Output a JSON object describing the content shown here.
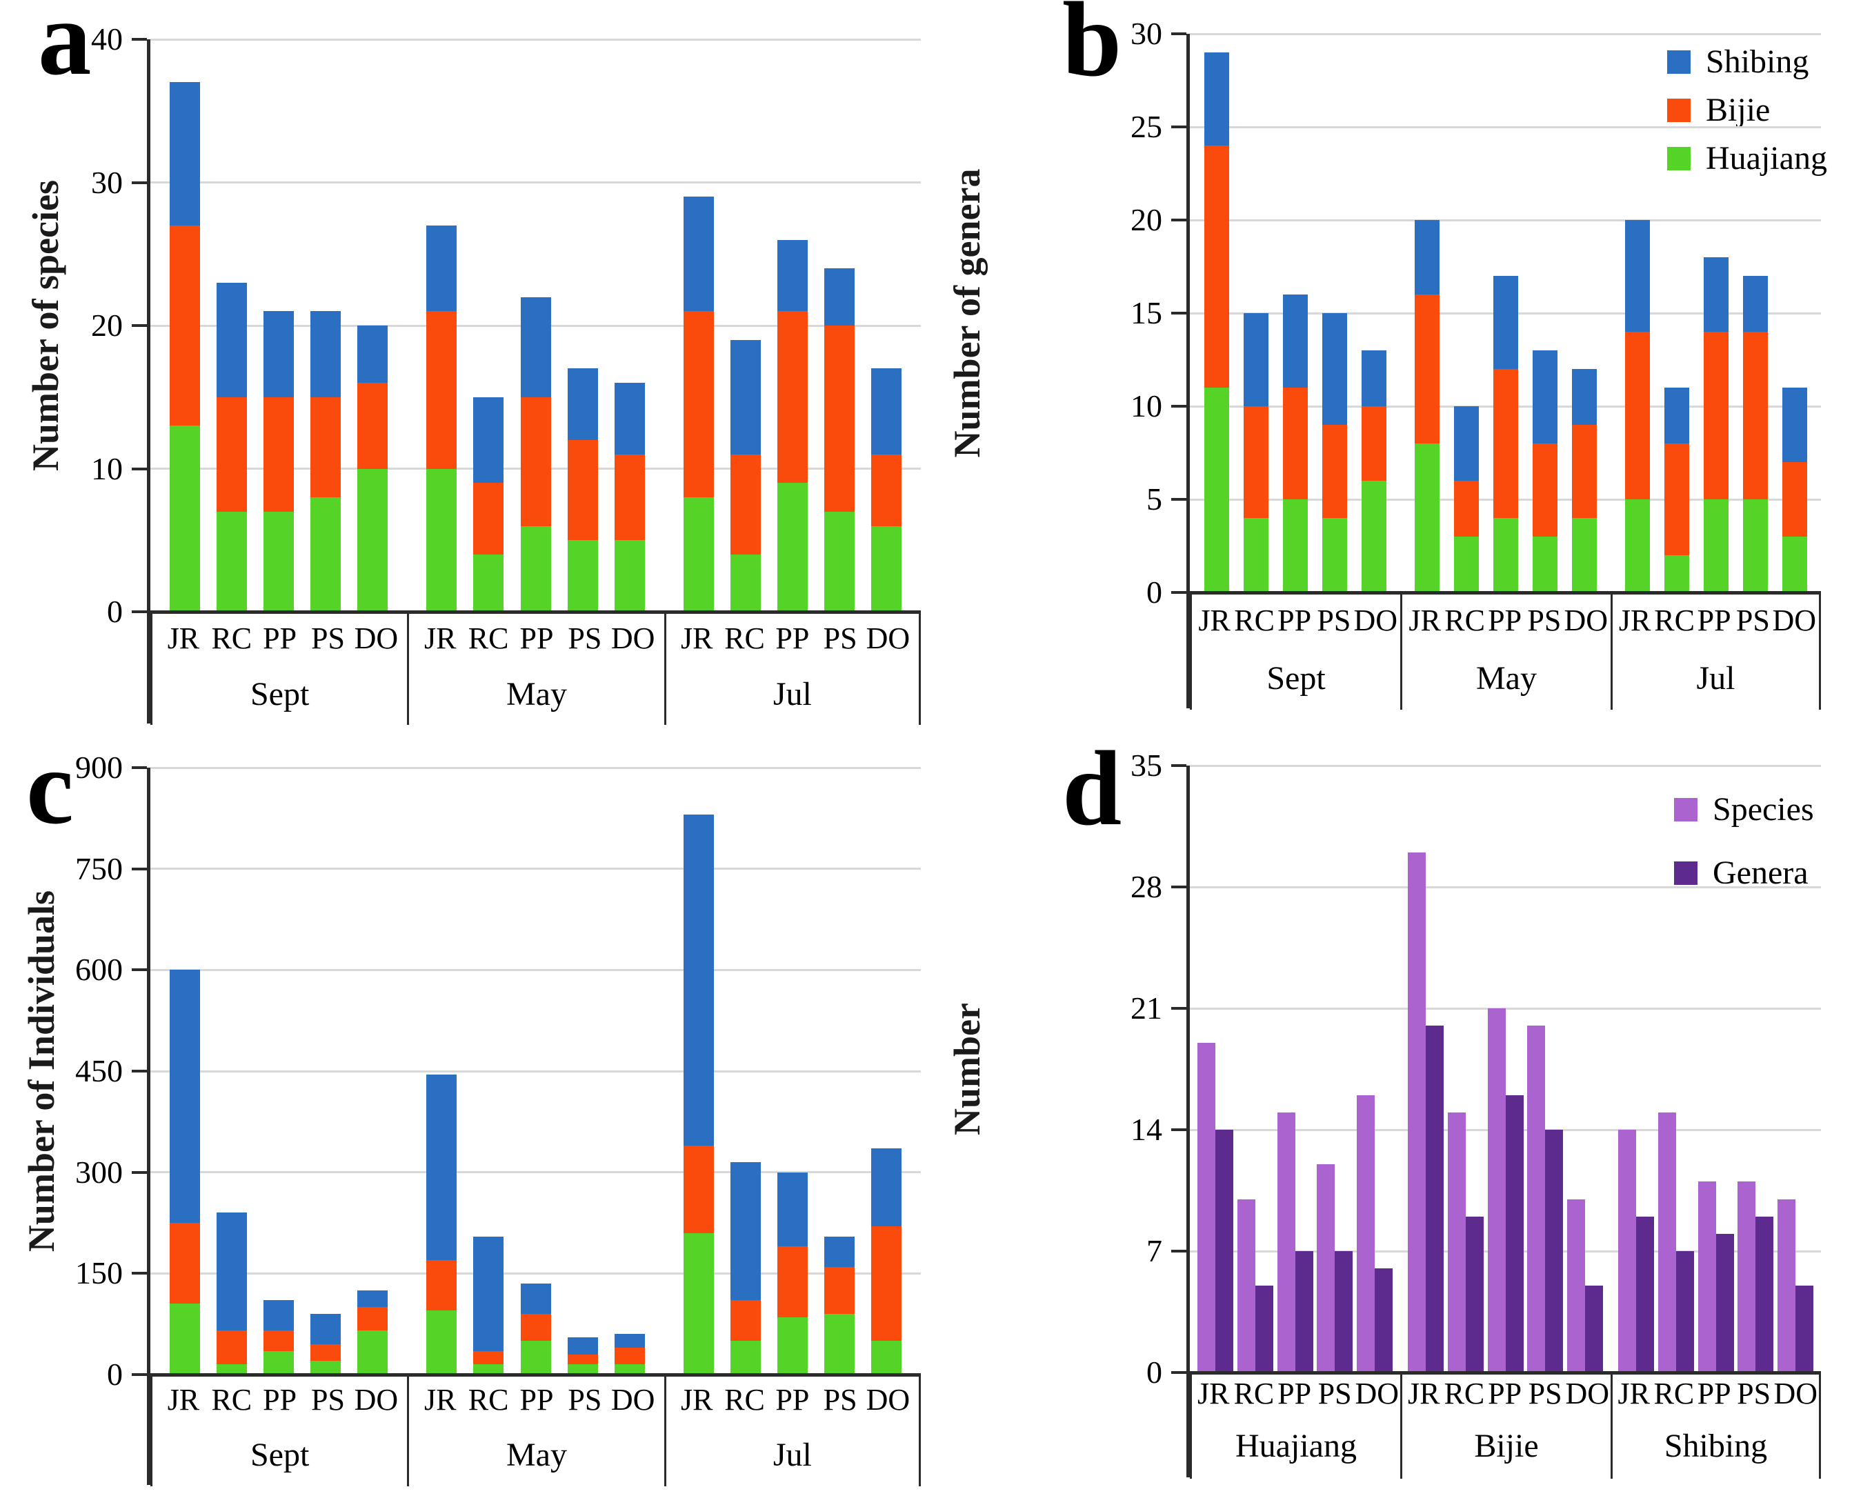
{
  "colors": {
    "shibing": "#2b6fc2",
    "bijie": "#fa4a0c",
    "huajiang": "#55d327",
    "species": "#aa63cf",
    "genera": "#5d2b8d",
    "gridline": "#d8d8d8",
    "axis": "#2b2b2b"
  },
  "chart_data": [
    {
      "id": "a",
      "letter": "a",
      "type": "bar-stacked",
      "y_title": "Number of species",
      "ylim": [
        0,
        40
      ],
      "yticks": [
        0,
        10,
        20,
        30,
        40
      ],
      "groups": [
        "Sept",
        "May",
        "Jul"
      ],
      "site_labels": [
        "JR",
        "RC",
        "PP",
        "PS",
        "DO"
      ],
      "grid": true,
      "legend_position": "none",
      "series": [
        {
          "name": "Huajiang",
          "color": "huajiang",
          "values": [
            [
              13,
              7,
              7,
              8,
              10
            ],
            [
              10,
              4,
              6,
              5,
              5
            ],
            [
              8,
              4,
              9,
              7,
              6
            ]
          ]
        },
        {
          "name": "Bijie",
          "color": "bijie",
          "values": [
            [
              14,
              8,
              8,
              7,
              6
            ],
            [
              11,
              5,
              9,
              7,
              6
            ],
            [
              13,
              7,
              12,
              13,
              5
            ]
          ]
        },
        {
          "name": "Shibing",
          "color": "shibing",
          "values": [
            [
              10,
              8,
              6,
              6,
              4
            ],
            [
              6,
              6,
              7,
              5,
              5
            ],
            [
              8,
              8,
              5,
              4,
              6
            ]
          ]
        }
      ]
    },
    {
      "id": "b",
      "letter": "b",
      "type": "bar-stacked",
      "y_title": "Number of genera",
      "ylim": [
        0,
        30
      ],
      "yticks": [
        0,
        5,
        10,
        15,
        20,
        25,
        30
      ],
      "groups": [
        "Sept",
        "May",
        "Jul"
      ],
      "site_labels": [
        "JR",
        "RC",
        "PP",
        "PS",
        "DO"
      ],
      "grid": true,
      "legend_position": "top-right",
      "legend": [
        {
          "label": "Shibing",
          "color": "shibing"
        },
        {
          "label": "Bijie",
          "color": "bijie"
        },
        {
          "label": "Huajiang",
          "color": "huajiang"
        }
      ],
      "series": [
        {
          "name": "Huajiang",
          "color": "huajiang",
          "values": [
            [
              11,
              4,
              5,
              4,
              6
            ],
            [
              8,
              3,
              4,
              3,
              4
            ],
            [
              5,
              2,
              5,
              5,
              3
            ]
          ]
        },
        {
          "name": "Bijie",
          "color": "bijie",
          "values": [
            [
              13,
              6,
              6,
              5,
              4
            ],
            [
              8,
              3,
              8,
              5,
              5
            ],
            [
              9,
              6,
              9,
              9,
              4
            ]
          ]
        },
        {
          "name": "Shibing",
          "color": "shibing",
          "values": [
            [
              5,
              5,
              5,
              6,
              3
            ],
            [
              4,
              4,
              5,
              5,
              3
            ],
            [
              6,
              3,
              4,
              3,
              4
            ]
          ]
        }
      ]
    },
    {
      "id": "c",
      "letter": "c",
      "type": "bar-stacked",
      "y_title": "Number of Individuals",
      "ylim": [
        0,
        900
      ],
      "yticks": [
        0,
        150,
        300,
        450,
        600,
        750,
        900
      ],
      "groups": [
        "Sept",
        "May",
        "Jul"
      ],
      "site_labels": [
        "JR",
        "RC",
        "PP",
        "PS",
        "DO"
      ],
      "grid": true,
      "legend_position": "none",
      "series": [
        {
          "name": "Huajiang",
          "color": "huajiang",
          "values": [
            [
              105,
              15,
              35,
              20,
              65
            ],
            [
              95,
              15,
              50,
              15,
              15
            ],
            [
              210,
              50,
              85,
              90,
              50
            ]
          ]
        },
        {
          "name": "Bijie",
          "color": "bijie",
          "values": [
            [
              120,
              50,
              30,
              25,
              35
            ],
            [
              75,
              20,
              40,
              15,
              25
            ],
            [
              130,
              60,
              105,
              70,
              170
            ]
          ]
        },
        {
          "name": "Shibing",
          "color": "shibing",
          "values": [
            [
              375,
              175,
              45,
              45,
              25
            ],
            [
              275,
              170,
              45,
              25,
              20
            ],
            [
              490,
              205,
              110,
              45,
              115
            ]
          ]
        }
      ]
    },
    {
      "id": "d",
      "letter": "d",
      "type": "bar-grouped",
      "y_title": "Number",
      "ylim": [
        0,
        35
      ],
      "yticks": [
        0,
        7,
        14,
        21,
        28,
        35
      ],
      "groups": [
        "Huajiang",
        "Bijie",
        "Shibing"
      ],
      "site_labels": [
        "JR",
        "RC",
        "PP",
        "PS",
        "DO"
      ],
      "grid": true,
      "legend_position": "top-right",
      "legend": [
        {
          "label": "Species",
          "color": "species"
        },
        {
          "label": "Genera",
          "color": "genera"
        }
      ],
      "series": [
        {
          "name": "Species",
          "color": "species",
          "values": [
            [
              19,
              10,
              15,
              12,
              16
            ],
            [
              30,
              15,
              21,
              20,
              10
            ],
            [
              14,
              15,
              11,
              11,
              10
            ]
          ]
        },
        {
          "name": "Genera",
          "color": "genera",
          "values": [
            [
              14,
              5,
              7,
              7,
              6
            ],
            [
              20,
              9,
              16,
              14,
              5
            ],
            [
              9,
              7,
              8,
              9,
              5
            ]
          ]
        }
      ]
    }
  ]
}
